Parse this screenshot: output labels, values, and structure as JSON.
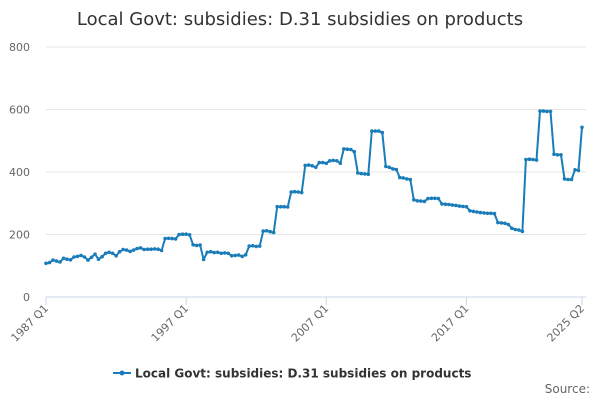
{
  "chart_data": {
    "type": "line",
    "title": "Local Govt: subsidies: D.31 subsidies on products",
    "xlabel": "",
    "ylabel": "",
    "ylim": [
      0,
      800
    ],
    "yticks": [
      0,
      200,
      400,
      600,
      800
    ],
    "x_tick_labels": [
      "1987 Q1",
      "1997 Q1",
      "2007 Q1",
      "2017 Q1",
      "2025 Q2"
    ],
    "grid": "horizontal",
    "legend_position": "bottom",
    "source_label": "Source:",
    "colors": {
      "series": "#1a7dba",
      "grid": "#e6e6e6",
      "axis": "#ccd6eb"
    },
    "series": [
      {
        "name": "Local Govt: subsidies: D.31 subsidies on products",
        "segments": [
          {
            "from": "1987 Q1",
            "to": "1989 Q4",
            "values": [
              108,
              110,
              118,
              115,
              112,
              124,
              121,
              119,
              128,
              130,
              133,
              128
            ]
          },
          {
            "from": "1990 Q1",
            "to": "1992 Q4",
            "values": [
              118,
              127,
              137,
              121,
              129,
              140,
              143,
              140,
              132,
              145,
              152,
              150
            ]
          },
          {
            "from": "1993 Q1",
            "to": "1995 Q4",
            "values": [
              146,
              150,
              155,
              157,
              152,
              153,
              153,
              154,
              153,
              149,
              187,
              188
            ]
          },
          {
            "from": "1996 Q1",
            "to": "1998 Q4",
            "values": [
              187,
              186,
              200,
              201,
              201,
              199,
              167,
              165,
              166,
              120,
              143,
              145
            ]
          },
          {
            "from": "1999 Q1",
            "to": "2001 Q4",
            "values": [
              142,
              143,
              140,
              141,
              140,
              132,
              133,
              134,
              130,
              135,
              163,
              164
            ]
          },
          {
            "from": "2002 Q1",
            "to": "2004 Q4",
            "values": [
              162,
              163,
              211,
              212,
              209,
              206,
              289,
              289,
              289,
              288,
              336,
              337
            ]
          },
          {
            "from": "2005 Q1",
            "to": "2007 Q4",
            "values": [
              336,
              334,
              421,
              422,
              420,
              415,
              430,
              430,
              428,
              436,
              437,
              436
            ]
          },
          {
            "from": "2008 Q1",
            "to": "2010 Q4",
            "values": [
              428,
              474,
              473,
              472,
              465,
              397,
              395,
              394,
              393,
              531,
              531,
              531
            ]
          },
          {
            "from": "2011 Q1",
            "to": "2013 Q4",
            "values": [
              526,
              418,
              415,
              410,
              408,
              382,
              381,
              378,
              376,
              311,
              308,
              307
            ]
          },
          {
            "from": "2014 Q1",
            "to": "2016 Q4",
            "values": [
              306,
              315,
              316,
              316,
              315,
              298,
              297,
              296,
              294,
              293,
              291,
              290
            ]
          },
          {
            "from": "2017 Q1",
            "to": "2019 Q4",
            "values": [
              289,
              276,
              274,
              272,
              270,
              269,
              268,
              268,
              267,
              238,
              237,
              236
            ]
          },
          {
            "from": "2020 Q1",
            "to": "2022 Q4",
            "values": [
              232,
              220,
              216,
              214,
              210,
              440,
              441,
              440,
              438,
              595,
              595,
              594
            ]
          },
          {
            "from": "2023 Q1",
            "to": "2025 Q2",
            "values": [
              594,
              457,
              455,
              455,
              378,
              376,
              376,
              407,
              405,
              543
            ]
          }
        ]
      }
    ]
  }
}
